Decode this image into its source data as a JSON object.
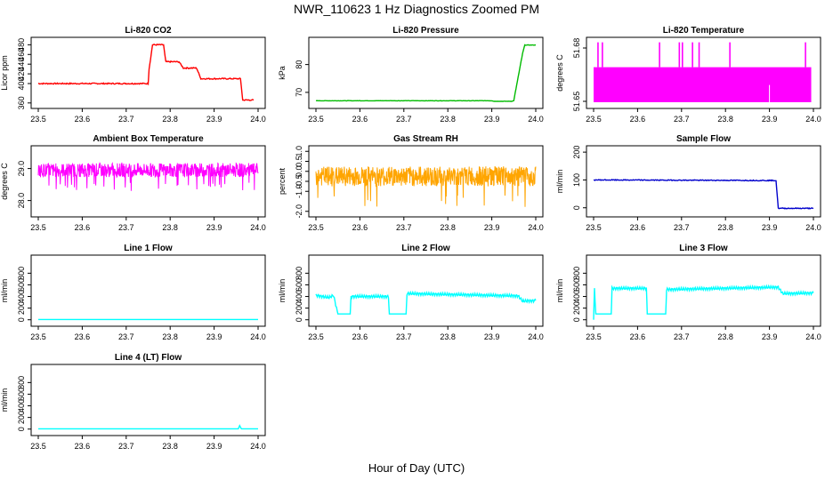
{
  "figure": {
    "title": "NWR_110623  1 Hz Diagnostics Zoomed PM",
    "xlabel": "Hour of Day (UTC)"
  },
  "chart_data": [
    {
      "id": "co2",
      "type": "line",
      "title": "Li-820 CO2",
      "ylabel": "Licor ppm",
      "color": "#ff0000",
      "xlim": [
        23.5,
        24.0
      ],
      "ylim": [
        356,
        488
      ],
      "xticks": [
        "23.5",
        "23.6",
        "23.7",
        "23.8",
        "23.9",
        "24.0"
      ],
      "yticks": [
        {
          "v": 360,
          "label": "360"
        },
        {
          "v": 400,
          "label": "400"
        },
        {
          "v": 420,
          "label": "420"
        },
        {
          "v": 440,
          "label": "440"
        },
        {
          "v": 460,
          "label": "460"
        },
        {
          "v": 480,
          "label": "480"
        }
      ],
      "series": [
        {
          "x": [
            23.5,
            23.75,
            23.752,
            23.76,
            23.785,
            23.79,
            23.82,
            23.83,
            23.86,
            23.87,
            23.93,
            23.94,
            23.96,
            23.965,
            23.99
          ],
          "y": [
            400,
            400,
            430,
            480,
            480,
            445,
            445,
            432,
            432,
            410,
            410,
            410,
            410,
            366,
            366
          ],
          "noise": 1.2
        }
      ]
    },
    {
      "id": "pressure",
      "type": "line",
      "title": "Li-820 Pressure",
      "ylabel": "kPa",
      "color": "#00bb00",
      "xlim": [
        23.5,
        24.0
      ],
      "ylim": [
        65.5,
        88.5
      ],
      "xticks": [
        "23.5",
        "23.6",
        "23.7",
        "23.8",
        "23.9",
        "24.0"
      ],
      "yticks": [
        {
          "v": 70,
          "label": "70"
        },
        {
          "v": 80,
          "label": "80"
        }
      ],
      "series": [
        {
          "x": [
            23.5,
            23.9,
            23.905,
            23.945,
            23.95,
            23.97,
            23.975,
            24.0
          ],
          "y": [
            67,
            67,
            66.8,
            66.8,
            67,
            84,
            87,
            87
          ],
          "noise": 0.05
        }
      ]
    },
    {
      "id": "temperature",
      "type": "line",
      "title": "Li-820 Temperature",
      "ylabel": "degrees C",
      "color": "#ff00ff",
      "xlim": [
        23.5,
        24.0
      ],
      "ylim": [
        51.648,
        51.684
      ],
      "xticks": [
        "23.5",
        "23.6",
        "23.7",
        "23.8",
        "23.9",
        "24.0"
      ],
      "yticks": [
        {
          "v": 51.65,
          "label": "51.65"
        },
        {
          "v": 51.68,
          "label": "51.68"
        }
      ],
      "fill": {
        "x0": 23.5,
        "x1": 23.995,
        "ylo": 51.6495,
        "yhi": 51.6692
      },
      "spikes": [
        23.51,
        23.52,
        23.65,
        23.695,
        23.702,
        23.725,
        23.74,
        23.81,
        23.982
      ],
      "dips": [
        23.9
      ]
    },
    {
      "id": "ambient",
      "type": "line",
      "title": "Ambient Box Temperature",
      "ylabel": "degrees C",
      "color": "#ff00ff",
      "xlim": [
        23.5,
        24.0
      ],
      "ylim": [
        27.6,
        29.6
      ],
      "xticks": [
        "23.5",
        "23.6",
        "23.7",
        "23.8",
        "23.9",
        "24.0"
      ],
      "yticks": [
        {
          "v": 28.0,
          "label": "28.0"
        },
        {
          "v": 29.0,
          "label": "29.0"
        }
      ],
      "band": {
        "center": 28.95,
        "amp": 0.22,
        "outlier": -0.65
      }
    },
    {
      "id": "rh",
      "type": "line",
      "title": "Gas Stream RH",
      "ylabel": "percent",
      "color": "#ffa500",
      "xlim": [
        23.5,
        24.0
      ],
      "ylim": [
        -2.1,
        1.1
      ],
      "xticks": [
        "23.5",
        "23.6",
        "23.7",
        "23.8",
        "23.9",
        "24.0"
      ],
      "yticks": [
        {
          "v": -2.0,
          "label": "-2.0"
        },
        {
          "v": -1.0,
          "label": "-1.0"
        },
        {
          "v": -0.5,
          "label": "-0.5"
        },
        {
          "v": 0.0,
          "label": "0.0"
        },
        {
          "v": 0.5,
          "label": "0.5"
        },
        {
          "v": 1.0,
          "label": "1.0"
        }
      ],
      "band": {
        "center": -0.25,
        "amp": 0.5,
        "outlier": -1.6
      }
    },
    {
      "id": "sample",
      "type": "line",
      "title": "Sample Flow",
      "ylabel": "ml/min",
      "color": "#0000cc",
      "xlim": [
        23.5,
        24.0
      ],
      "ylim": [
        -20,
        210
      ],
      "xticks": [
        "23.5",
        "23.6",
        "23.7",
        "23.8",
        "23.9",
        "24.0"
      ],
      "yticks": [
        {
          "v": 0,
          "label": "0"
        },
        {
          "v": 100,
          "label": "100"
        },
        {
          "v": 200,
          "label": "200"
        }
      ],
      "series": [
        {
          "x": [
            23.5,
            23.915,
            23.92,
            24.0
          ],
          "y": [
            100,
            98,
            -2,
            -2
          ],
          "noise": 1.5
        }
      ]
    },
    {
      "id": "line1",
      "type": "line",
      "title": "Line 1 Flow",
      "ylabel": "ml/min",
      "color": "#00ffff",
      "xlim": [
        23.5,
        24.0
      ],
      "ylim": [
        -50,
        1050
      ],
      "xticks": [
        "23.5",
        "23.6",
        "23.7",
        "23.8",
        "23.9",
        "24.0"
      ],
      "yticks": [
        {
          "v": 0,
          "label": "0"
        },
        {
          "v": 200,
          "label": "200"
        },
        {
          "v": 400,
          "label": "400"
        },
        {
          "v": 600,
          "label": "600"
        },
        {
          "v": 800,
          "label": "800"
        }
      ],
      "series": [
        {
          "x": [
            23.5,
            24.0
          ],
          "y": [
            5,
            5
          ],
          "noise": 0
        }
      ]
    },
    {
      "id": "line2",
      "type": "line",
      "title": "Line 2 Flow",
      "ylabel": "ml/min",
      "color": "#00ffff",
      "xlim": [
        23.5,
        24.0
      ],
      "ylim": [
        -50,
        1050
      ],
      "xticks": [
        "23.5",
        "23.6",
        "23.7",
        "23.8",
        "23.9",
        "24.0"
      ],
      "yticks": [
        {
          "v": 0,
          "label": "0"
        },
        {
          "v": 200,
          "label": "200"
        },
        {
          "v": 400,
          "label": "400"
        },
        {
          "v": 600,
          "label": "600"
        },
        {
          "v": 800,
          "label": "800"
        }
      ],
      "series": [
        {
          "x": [
            23.5,
            23.53,
            23.54,
            23.55,
            23.578,
            23.58,
            23.665,
            23.667,
            23.705,
            23.707,
            23.96,
            23.97,
            24.0
          ],
          "y": [
            420,
            380,
            420,
            100,
            100,
            400,
            400,
            100,
            100,
            450,
            410,
            320,
            330
          ],
          "wave": 25
        }
      ]
    },
    {
      "id": "line3",
      "type": "line",
      "title": "Line 3 Flow",
      "ylabel": "ml/min",
      "color": "#00ffff",
      "xlim": [
        23.5,
        24.0
      ],
      "ylim": [
        -50,
        1050
      ],
      "xticks": [
        "23.5",
        "23.6",
        "23.7",
        "23.8",
        "23.9",
        "24.0"
      ],
      "yticks": [
        {
          "v": 0,
          "label": "0"
        },
        {
          "v": 200,
          "label": "200"
        },
        {
          "v": 400,
          "label": "400"
        },
        {
          "v": 600,
          "label": "600"
        },
        {
          "v": 800,
          "label": "800"
        }
      ],
      "series": [
        {
          "x": [
            23.5,
            23.502,
            23.505,
            23.54,
            23.542,
            23.62,
            23.622,
            23.664,
            23.666,
            23.92,
            23.93,
            24.0
          ],
          "y": [
            0,
            550,
            100,
            100,
            540,
            540,
            100,
            100,
            520,
            560,
            450,
            460
          ],
          "wave": 25
        }
      ]
    },
    {
      "id": "line4",
      "type": "line",
      "title": "Line 4 (LT) Flow",
      "ylabel": "ml/min",
      "color": "#00ffff",
      "xlim": [
        23.5,
        24.0
      ],
      "ylim": [
        -50,
        1050
      ],
      "xticks": [
        "23.5",
        "23.6",
        "23.7",
        "23.8",
        "23.9",
        "24.0"
      ],
      "yticks": [
        {
          "v": 0,
          "label": "0"
        },
        {
          "v": 200,
          "label": "200"
        },
        {
          "v": 400,
          "label": "400"
        },
        {
          "v": 600,
          "label": "600"
        },
        {
          "v": 800,
          "label": "800"
        }
      ],
      "series": [
        {
          "x": [
            23.5,
            23.955,
            23.958,
            23.962,
            24.0
          ],
          "y": [
            5,
            5,
            60,
            5,
            5
          ],
          "noise": 0
        }
      ]
    }
  ]
}
